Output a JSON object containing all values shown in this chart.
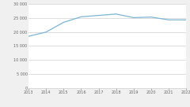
{
  "years": [
    2013,
    2014,
    2015,
    2016,
    2017,
    2018,
    2019,
    2020,
    2021,
    2022
  ],
  "values": [
    18500,
    20000,
    23500,
    25500,
    26000,
    26500,
    25200,
    25400,
    24400,
    24400
  ],
  "line_color": "#7ab5d4",
  "background_color": "#f0f0f0",
  "plot_bg_color": "#ffffff",
  "ylim": [
    0,
    30000
  ],
  "yticks": [
    0,
    5000,
    10000,
    15000,
    20000,
    25000,
    30000
  ],
  "grid_color": "#d0d0d0",
  "xlim_left": 2013,
  "xlim_right": 2022
}
